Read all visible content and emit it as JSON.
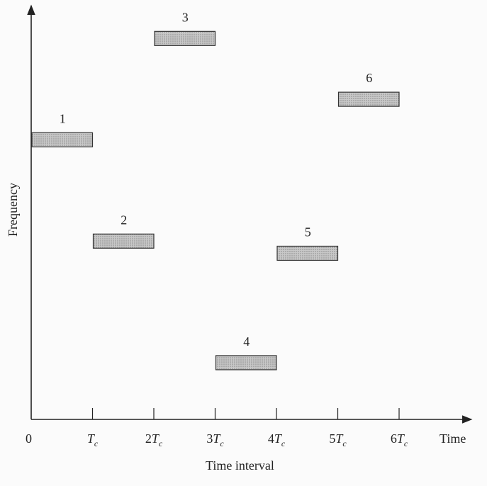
{
  "axes": {
    "x_title": "Time",
    "x_subtitle": "Time interval",
    "y_title": "Frequency",
    "origin_label": "0",
    "x_tick_labels": [
      {
        "coef": "",
        "main": "T",
        "sub": "c"
      },
      {
        "coef": "2",
        "main": "T",
        "sub": "c"
      },
      {
        "coef": "3",
        "main": "T",
        "sub": "c"
      },
      {
        "coef": "4",
        "main": "T",
        "sub": "c"
      },
      {
        "coef": "5",
        "main": "T",
        "sub": "c"
      },
      {
        "coef": "6",
        "main": "T",
        "sub": "c"
      }
    ]
  },
  "hops": [
    {
      "label": "1",
      "interval": 0,
      "level": 0.69
    },
    {
      "label": "2",
      "interval": 1,
      "level": 0.44
    },
    {
      "label": "3",
      "interval": 2,
      "level": 0.94
    },
    {
      "label": "4",
      "interval": 3,
      "level": 0.14
    },
    {
      "label": "5",
      "interval": 4,
      "level": 0.41
    },
    {
      "label": "6",
      "interval": 5,
      "level": 0.79
    }
  ],
  "colors": {
    "axis": "#222222",
    "bar_fill": "#bdbdbd",
    "bar_stroke": "#333333"
  }
}
